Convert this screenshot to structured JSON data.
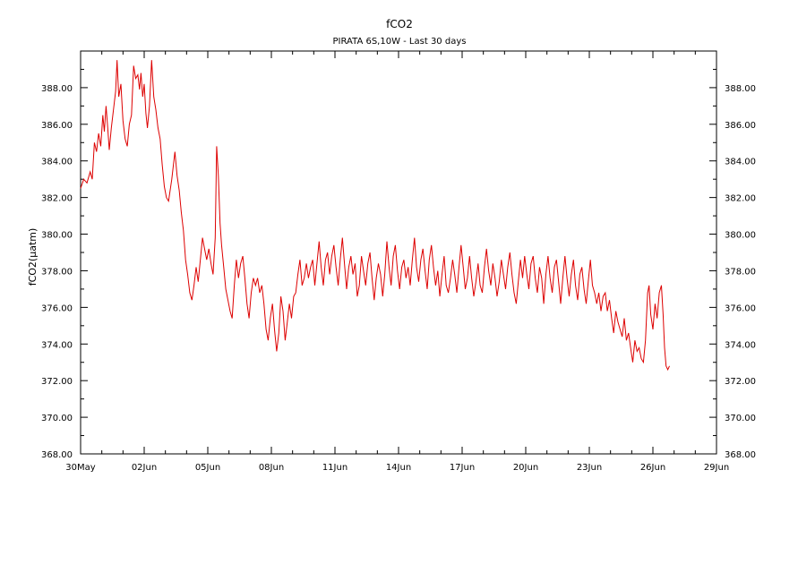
{
  "chart_data": {
    "type": "line",
    "title": "fCO2",
    "subtitle": "PIRATA 6S,10W - Last 30 days",
    "xlabel": "",
    "ylabel": "fCO2(μatm)",
    "ylim": [
      368,
      390
    ],
    "xlim": [
      0,
      30
    ],
    "x_ticks": [
      {
        "x": 0,
        "label": "30May"
      },
      {
        "x": 3,
        "label": "02Jun"
      },
      {
        "x": 6,
        "label": "05Jun"
      },
      {
        "x": 9,
        "label": "08Jun"
      },
      {
        "x": 12,
        "label": "11Jun"
      },
      {
        "x": 15,
        "label": "14Jun"
      },
      {
        "x": 18,
        "label": "17Jun"
      },
      {
        "x": 21,
        "label": "20Jun"
      },
      {
        "x": 24,
        "label": "23Jun"
      },
      {
        "x": 27,
        "label": "26Jun"
      },
      {
        "x": 30,
        "label": "29Jun"
      }
    ],
    "y_ticks": [
      "368.00",
      "370.00",
      "372.00",
      "374.00",
      "376.00",
      "378.00",
      "380.00",
      "382.00",
      "384.00",
      "386.00",
      "388.00"
    ],
    "grid": false,
    "legend": "none",
    "series": [
      {
        "color": "#dd0000",
        "points": [
          [
            0.0,
            382.5
          ],
          [
            0.15,
            383.0
          ],
          [
            0.3,
            382.8
          ],
          [
            0.45,
            383.4
          ],
          [
            0.55,
            383.0
          ],
          [
            0.65,
            385.0
          ],
          [
            0.75,
            384.5
          ],
          [
            0.85,
            385.5
          ],
          [
            0.95,
            384.8
          ],
          [
            1.05,
            386.5
          ],
          [
            1.12,
            385.6
          ],
          [
            1.2,
            387.0
          ],
          [
            1.28,
            385.8
          ],
          [
            1.35,
            384.6
          ],
          [
            1.45,
            385.8
          ],
          [
            1.55,
            386.8
          ],
          [
            1.65,
            387.8
          ],
          [
            1.72,
            389.5
          ],
          [
            1.8,
            387.5
          ],
          [
            1.9,
            388.2
          ],
          [
            2.0,
            386.2
          ],
          [
            2.1,
            385.2
          ],
          [
            2.2,
            384.8
          ],
          [
            2.3,
            386.0
          ],
          [
            2.4,
            386.5
          ],
          [
            2.5,
            389.2
          ],
          [
            2.6,
            388.5
          ],
          [
            2.7,
            388.7
          ],
          [
            2.78,
            387.9
          ],
          [
            2.85,
            388.8
          ],
          [
            2.93,
            387.5
          ],
          [
            3.0,
            388.2
          ],
          [
            3.08,
            386.6
          ],
          [
            3.15,
            385.8
          ],
          [
            3.25,
            387.0
          ],
          [
            3.35,
            389.5
          ],
          [
            3.45,
            387.5
          ],
          [
            3.55,
            386.8
          ],
          [
            3.65,
            385.8
          ],
          [
            3.75,
            385.2
          ],
          [
            3.85,
            383.8
          ],
          [
            3.95,
            382.6
          ],
          [
            4.05,
            382.0
          ],
          [
            4.15,
            381.8
          ],
          [
            4.3,
            383.0
          ],
          [
            4.45,
            384.5
          ],
          [
            4.55,
            383.2
          ],
          [
            4.65,
            382.4
          ],
          [
            4.75,
            381.2
          ],
          [
            4.85,
            380.2
          ],
          [
            4.95,
            378.6
          ],
          [
            5.05,
            377.8
          ],
          [
            5.15,
            376.8
          ],
          [
            5.25,
            376.4
          ],
          [
            5.35,
            377.2
          ],
          [
            5.45,
            378.2
          ],
          [
            5.55,
            377.4
          ],
          [
            5.65,
            378.6
          ],
          [
            5.75,
            379.8
          ],
          [
            5.85,
            379.2
          ],
          [
            5.95,
            378.6
          ],
          [
            6.05,
            379.2
          ],
          [
            6.15,
            378.4
          ],
          [
            6.25,
            377.8
          ],
          [
            6.35,
            379.8
          ],
          [
            6.42,
            384.8
          ],
          [
            6.5,
            383.2
          ],
          [
            6.58,
            380.6
          ],
          [
            6.65,
            379.4
          ],
          [
            6.75,
            378.2
          ],
          [
            6.85,
            377.0
          ],
          [
            6.95,
            376.4
          ],
          [
            7.05,
            375.8
          ],
          [
            7.15,
            375.4
          ],
          [
            7.25,
            377.2
          ],
          [
            7.35,
            378.6
          ],
          [
            7.45,
            377.6
          ],
          [
            7.55,
            378.4
          ],
          [
            7.65,
            378.8
          ],
          [
            7.75,
            377.6
          ],
          [
            7.85,
            376.2
          ],
          [
            7.95,
            375.4
          ],
          [
            8.05,
            376.8
          ],
          [
            8.15,
            377.6
          ],
          [
            8.25,
            377.2
          ],
          [
            8.35,
            377.6
          ],
          [
            8.45,
            376.8
          ],
          [
            8.55,
            377.2
          ],
          [
            8.65,
            376.2
          ],
          [
            8.75,
            374.8
          ],
          [
            8.85,
            374.2
          ],
          [
            8.95,
            375.4
          ],
          [
            9.05,
            376.2
          ],
          [
            9.15,
            374.8
          ],
          [
            9.25,
            373.6
          ],
          [
            9.35,
            374.6
          ],
          [
            9.45,
            376.6
          ],
          [
            9.55,
            375.8
          ],
          [
            9.65,
            374.2
          ],
          [
            9.75,
            375.2
          ],
          [
            9.85,
            376.2
          ],
          [
            9.95,
            375.4
          ],
          [
            10.05,
            376.6
          ],
          [
            10.15,
            376.8
          ],
          [
            10.25,
            377.8
          ],
          [
            10.35,
            378.6
          ],
          [
            10.45,
            377.2
          ],
          [
            10.55,
            377.6
          ],
          [
            10.65,
            378.4
          ],
          [
            10.75,
            377.6
          ],
          [
            10.85,
            378.2
          ],
          [
            10.95,
            378.6
          ],
          [
            11.05,
            377.2
          ],
          [
            11.15,
            378.4
          ],
          [
            11.25,
            379.6
          ],
          [
            11.35,
            378.2
          ],
          [
            11.45,
            377.2
          ],
          [
            11.55,
            378.6
          ],
          [
            11.65,
            379.0
          ],
          [
            11.75,
            377.8
          ],
          [
            11.85,
            378.8
          ],
          [
            11.95,
            379.4
          ],
          [
            12.05,
            378.2
          ],
          [
            12.15,
            377.2
          ],
          [
            12.25,
            378.6
          ],
          [
            12.35,
            379.8
          ],
          [
            12.45,
            378.4
          ],
          [
            12.55,
            377.0
          ],
          [
            12.65,
            378.2
          ],
          [
            12.75,
            378.8
          ],
          [
            12.85,
            377.8
          ],
          [
            12.95,
            378.4
          ],
          [
            13.05,
            376.6
          ],
          [
            13.15,
            377.2
          ],
          [
            13.25,
            378.8
          ],
          [
            13.35,
            378.0
          ],
          [
            13.45,
            377.2
          ],
          [
            13.55,
            378.4
          ],
          [
            13.65,
            379.0
          ],
          [
            13.75,
            377.6
          ],
          [
            13.85,
            376.4
          ],
          [
            13.95,
            377.6
          ],
          [
            14.05,
            378.4
          ],
          [
            14.15,
            377.8
          ],
          [
            14.25,
            376.6
          ],
          [
            14.35,
            377.8
          ],
          [
            14.45,
            379.6
          ],
          [
            14.55,
            378.2
          ],
          [
            14.65,
            377.2
          ],
          [
            14.75,
            378.8
          ],
          [
            14.85,
            379.4
          ],
          [
            14.95,
            378.0
          ],
          [
            15.05,
            377.0
          ],
          [
            15.15,
            378.2
          ],
          [
            15.25,
            378.6
          ],
          [
            15.35,
            377.6
          ],
          [
            15.45,
            378.2
          ],
          [
            15.55,
            377.2
          ],
          [
            15.65,
            378.6
          ],
          [
            15.75,
            379.8
          ],
          [
            15.85,
            378.2
          ],
          [
            15.95,
            377.4
          ],
          [
            16.05,
            378.6
          ],
          [
            16.15,
            379.2
          ],
          [
            16.25,
            378.0
          ],
          [
            16.35,
            377.0
          ],
          [
            16.45,
            378.6
          ],
          [
            16.55,
            379.4
          ],
          [
            16.65,
            378.2
          ],
          [
            16.75,
            377.2
          ],
          [
            16.85,
            378.0
          ],
          [
            16.95,
            376.6
          ],
          [
            17.05,
            377.8
          ],
          [
            17.15,
            378.8
          ],
          [
            17.25,
            377.2
          ],
          [
            17.35,
            376.8
          ],
          [
            17.45,
            377.6
          ],
          [
            17.55,
            378.6
          ],
          [
            17.65,
            377.8
          ],
          [
            17.75,
            376.8
          ],
          [
            17.85,
            378.2
          ],
          [
            17.95,
            379.4
          ],
          [
            18.05,
            378.2
          ],
          [
            18.15,
            377.0
          ],
          [
            18.25,
            377.6
          ],
          [
            18.35,
            378.8
          ],
          [
            18.45,
            377.6
          ],
          [
            18.55,
            376.6
          ],
          [
            18.65,
            377.4
          ],
          [
            18.75,
            378.4
          ],
          [
            18.85,
            377.2
          ],
          [
            18.95,
            376.8
          ],
          [
            19.05,
            378.2
          ],
          [
            19.15,
            379.2
          ],
          [
            19.25,
            378.0
          ],
          [
            19.35,
            377.2
          ],
          [
            19.45,
            378.4
          ],
          [
            19.55,
            377.6
          ],
          [
            19.65,
            376.6
          ],
          [
            19.75,
            377.4
          ],
          [
            19.85,
            378.6
          ],
          [
            19.95,
            377.8
          ],
          [
            20.05,
            377.0
          ],
          [
            20.15,
            378.2
          ],
          [
            20.25,
            379.0
          ],
          [
            20.35,
            377.8
          ],
          [
            20.45,
            376.8
          ],
          [
            20.55,
            376.2
          ],
          [
            20.65,
            377.4
          ],
          [
            20.75,
            378.6
          ],
          [
            20.85,
            377.6
          ],
          [
            20.95,
            378.8
          ],
          [
            21.05,
            377.8
          ],
          [
            21.15,
            377.0
          ],
          [
            21.25,
            378.4
          ],
          [
            21.35,
            378.8
          ],
          [
            21.45,
            377.6
          ],
          [
            21.55,
            376.8
          ],
          [
            21.65,
            378.2
          ],
          [
            21.75,
            377.6
          ],
          [
            21.85,
            376.2
          ],
          [
            21.95,
            377.8
          ],
          [
            22.05,
            378.8
          ],
          [
            22.15,
            377.6
          ],
          [
            22.25,
            376.8
          ],
          [
            22.35,
            378.2
          ],
          [
            22.45,
            378.6
          ],
          [
            22.55,
            377.4
          ],
          [
            22.65,
            376.2
          ],
          [
            22.75,
            377.6
          ],
          [
            22.85,
            378.8
          ],
          [
            22.95,
            377.6
          ],
          [
            23.05,
            376.6
          ],
          [
            23.15,
            377.8
          ],
          [
            23.25,
            378.6
          ],
          [
            23.35,
            377.2
          ],
          [
            23.45,
            376.4
          ],
          [
            23.55,
            377.8
          ],
          [
            23.65,
            378.2
          ],
          [
            23.75,
            377.0
          ],
          [
            23.85,
            376.2
          ],
          [
            23.95,
            377.4
          ],
          [
            24.05,
            378.6
          ],
          [
            24.15,
            377.2
          ],
          [
            24.25,
            376.8
          ],
          [
            24.35,
            376.2
          ],
          [
            24.45,
            376.8
          ],
          [
            24.55,
            375.8
          ],
          [
            24.65,
            376.6
          ],
          [
            24.75,
            376.8
          ],
          [
            24.85,
            375.8
          ],
          [
            24.95,
            376.4
          ],
          [
            25.05,
            375.4
          ],
          [
            25.15,
            374.6
          ],
          [
            25.25,
            375.8
          ],
          [
            25.35,
            375.2
          ],
          [
            25.45,
            374.8
          ],
          [
            25.55,
            374.4
          ],
          [
            25.65,
            375.4
          ],
          [
            25.75,
            374.2
          ],
          [
            25.85,
            374.6
          ],
          [
            25.95,
            373.8
          ],
          [
            26.05,
            373.0
          ],
          [
            26.15,
            374.2
          ],
          [
            26.25,
            373.6
          ],
          [
            26.35,
            373.8
          ],
          [
            26.45,
            373.2
          ],
          [
            26.55,
            373.0
          ],
          [
            26.65,
            374.2
          ],
          [
            26.75,
            376.8
          ],
          [
            26.82,
            377.2
          ],
          [
            26.9,
            375.6
          ],
          [
            27.0,
            374.8
          ],
          [
            27.1,
            376.2
          ],
          [
            27.2,
            375.4
          ],
          [
            27.3,
            376.8
          ],
          [
            27.4,
            377.2
          ],
          [
            27.48,
            375.6
          ],
          [
            27.55,
            373.8
          ],
          [
            27.62,
            372.8
          ],
          [
            27.7,
            372.6
          ],
          [
            27.78,
            372.8
          ]
        ]
      }
    ]
  }
}
